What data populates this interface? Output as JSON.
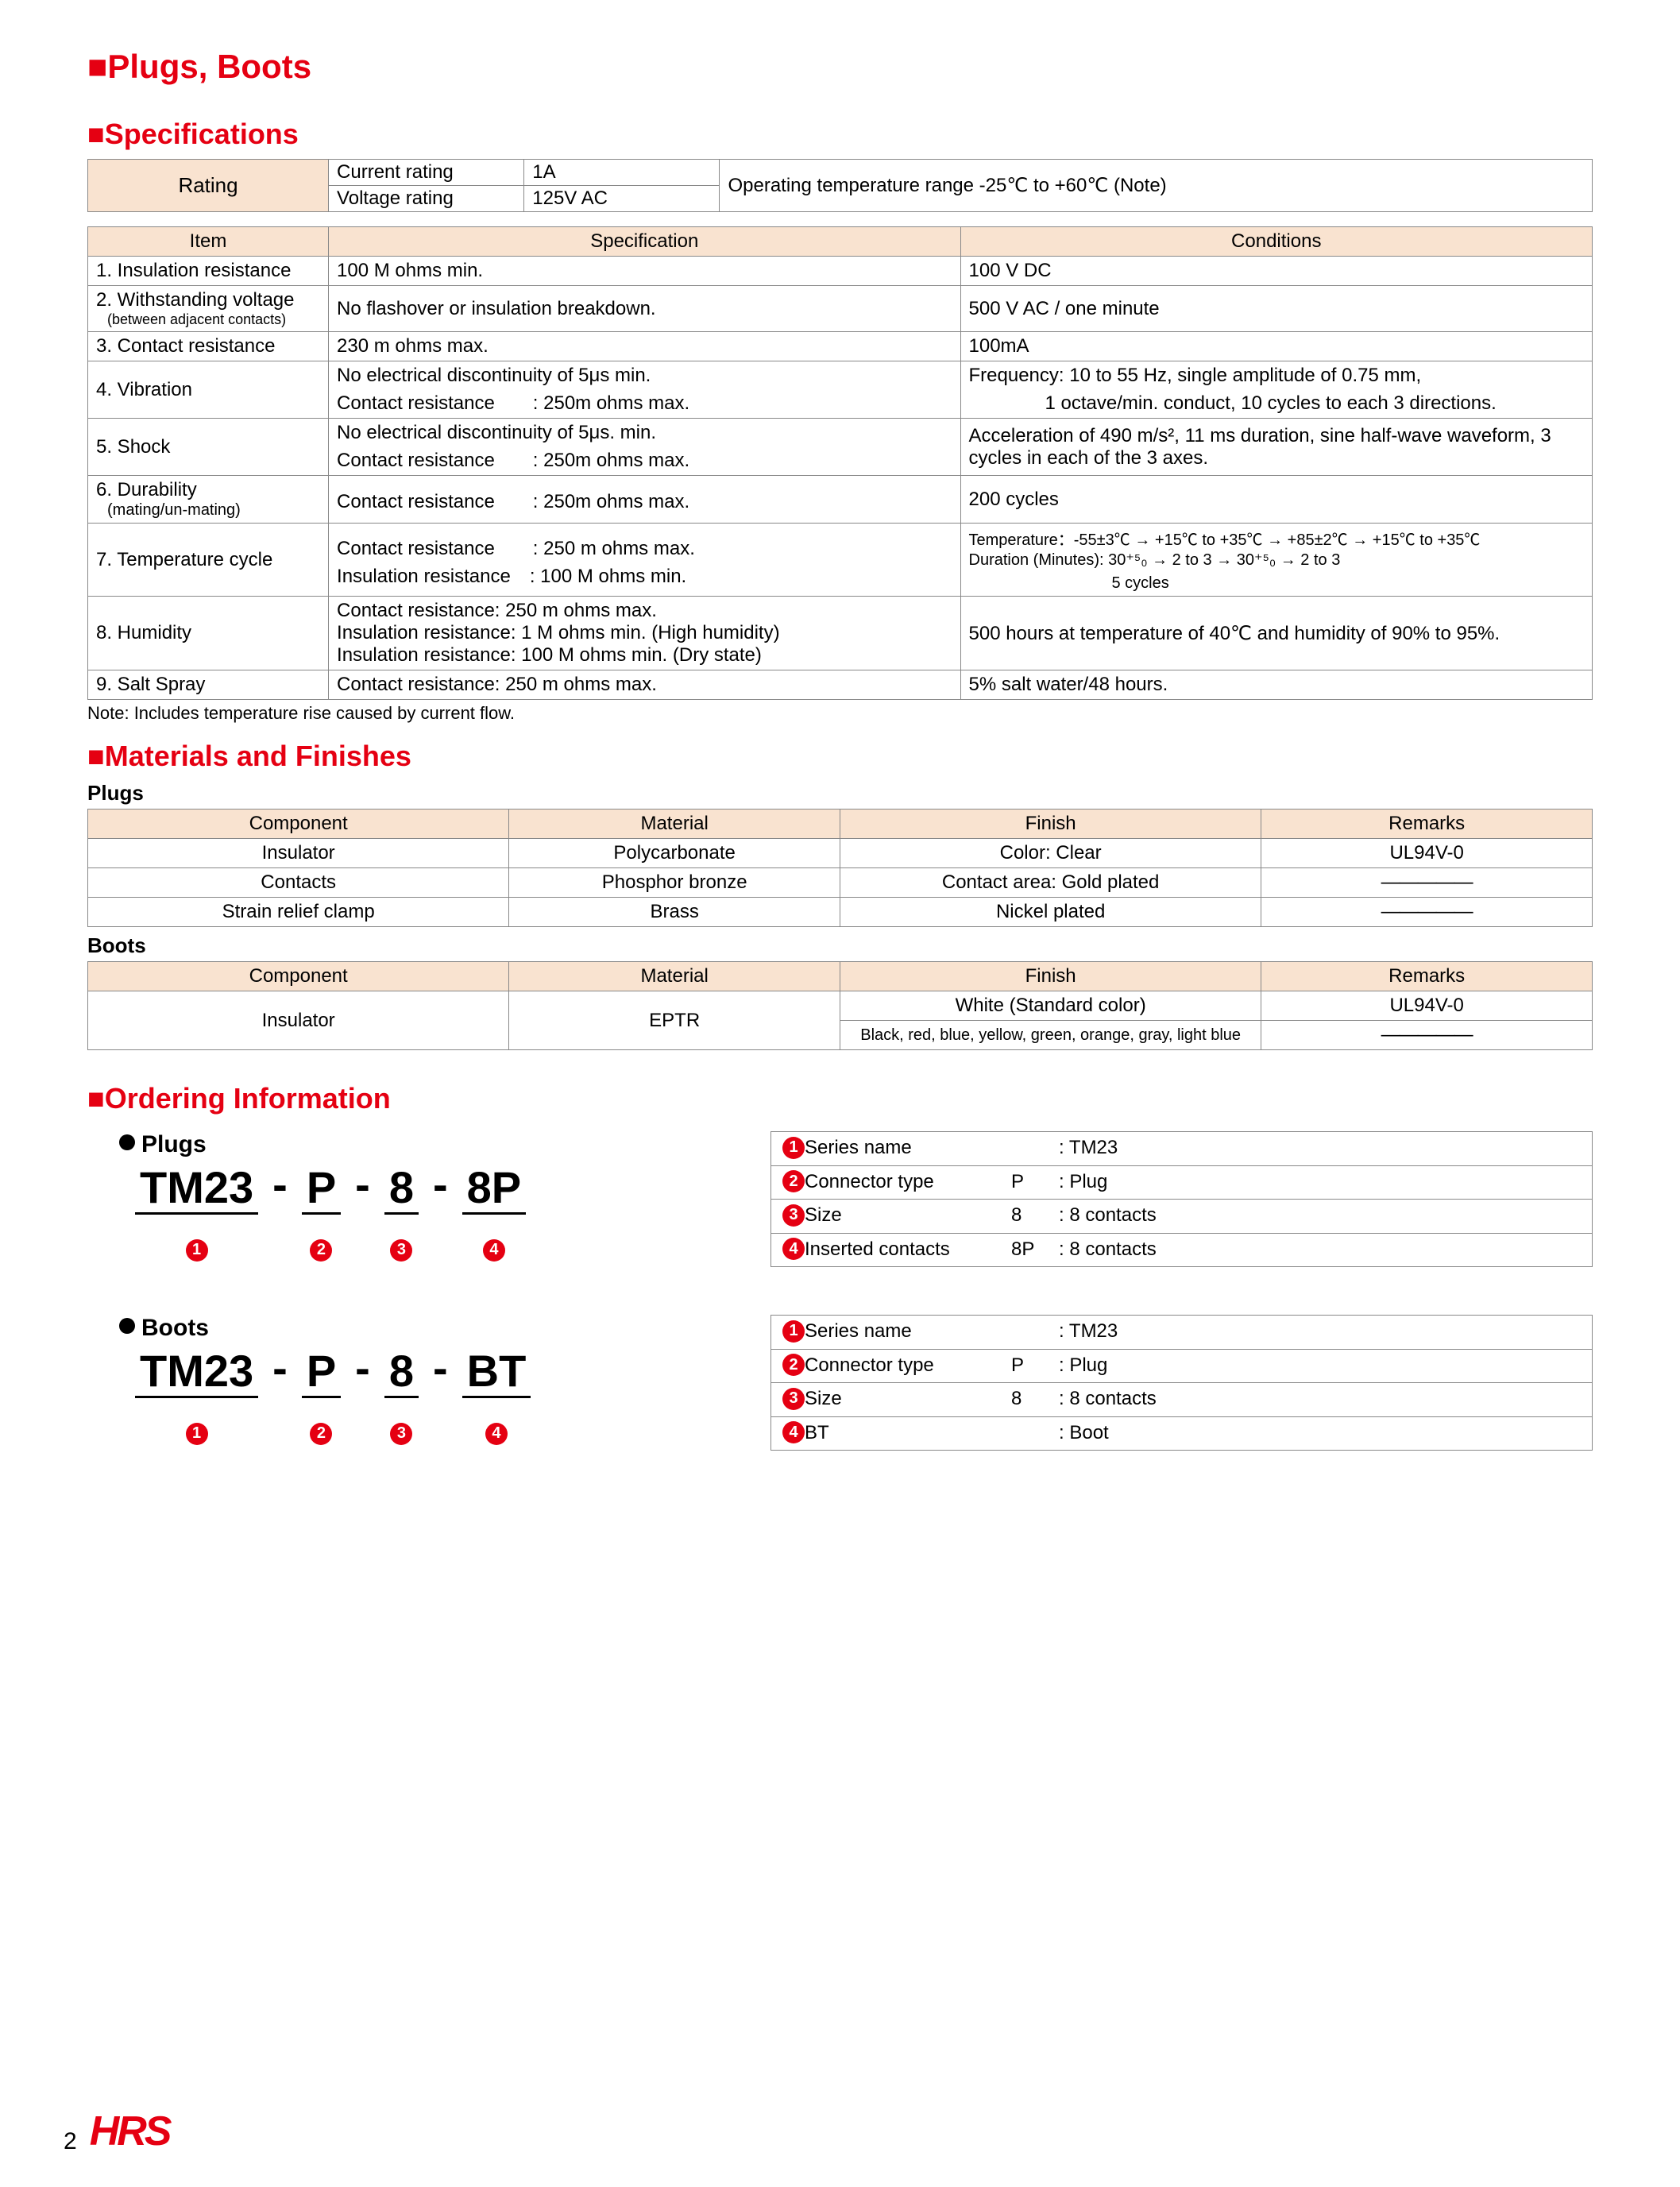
{
  "colors": {
    "accent": "#e50012",
    "header_bg": "#f9e3d0",
    "border": "#888888",
    "text": "#000000",
    "bg": "#ffffff"
  },
  "page_title": "Plugs, Boots",
  "sections": {
    "spec": "Specifications",
    "mat": "Materials and Finishes",
    "ord": "Ordering Information"
  },
  "rating": {
    "label": "Rating",
    "current_label": "Current rating",
    "current_value": "1A",
    "voltage_label": "Voltage rating",
    "voltage_value": "125V AC",
    "optemp": "Operating temperature range -25℃ to +60℃ (Note)"
  },
  "spec_headers": {
    "item": "Item",
    "spec": "Specification",
    "cond": "Conditions"
  },
  "specs": [
    {
      "item": "1. Insulation resistance",
      "spec": "100 M ohms min.",
      "cond": "100 V DC"
    },
    {
      "item": "2. Withstanding voltage",
      "item_sub": "(between adjacent contacts)",
      "spec": "No flashover or insulation breakdown.",
      "cond": "500 V AC / one minute"
    },
    {
      "item": "3. Contact resistance",
      "spec": "230 m ohms max.",
      "cond": "100mA"
    },
    {
      "item": "4. Vibration",
      "spec": "No electrical discontinuity of 5μs min.\nContact resistance　　: 250m ohms max.",
      "cond": "Frequency: 10 to 55 Hz, single amplitude of 0.75 mm,\n　　　　1 octave/min. conduct, 10 cycles to each 3 directions."
    },
    {
      "item": "5. Shock",
      "spec": "No electrical discontinuity of 5μs. min.\nContact resistance　　: 250m ohms max.",
      "cond": "Acceleration of 490 m/s², 11 ms duration, sine half-wave waveform, 3 cycles in each of the 3 axes."
    },
    {
      "item": "6. Durability",
      "item_sub": "(mating/un-mating)",
      "spec": "Contact resistance　　: 250m ohms max.",
      "cond": "200 cycles"
    },
    {
      "item": "7. Temperature cycle",
      "spec": "Contact resistance　　: 250 m ohms max.\nInsulation resistance　: 100 M ohms min.",
      "cond": "Temperature：-55±3℃ → +15℃ to +35℃ → +85±2℃ → +15℃ to +35℃\nDuration (Minutes): 30⁺⁵₀ → 2 to 3 → 30⁺⁵₀ → 2 to 3\n　　　　　　　　　5 cycles"
    },
    {
      "item": "8. Humidity",
      "spec": "Contact resistance: 250 m ohms max.\nInsulation resistance: 1 M ohms min. (High humidity)\nInsulation resistance: 100 M ohms min. (Dry state)",
      "cond": "500 hours at temperature of 40℃ and humidity of 90% to 95%."
    },
    {
      "item": "9. Salt Spray",
      "spec": "Contact resistance: 250 m ohms max.",
      "cond": "5% salt water/48 hours."
    }
  ],
  "spec_note": "Note: Includes temperature rise caused by current flow.",
  "mat_headers": {
    "comp": "Component",
    "mat": "Material",
    "fin": "Finish",
    "rem": "Remarks"
  },
  "plugs_label": "Plugs",
  "plugs_rows": [
    {
      "comp": "Insulator",
      "mat": "Polycarbonate",
      "fin": "Color: Clear",
      "rem": "UL94V-0"
    },
    {
      "comp": "Contacts",
      "mat": "Phosphor bronze",
      "fin": "Contact area: Gold plated",
      "rem": "—————"
    },
    {
      "comp": "Strain relief clamp",
      "mat": "Brass",
      "fin": "Nickel plated",
      "rem": "—————"
    }
  ],
  "boots_label": "Boots",
  "boots_rows": [
    {
      "comp": "Insulator",
      "mat": "EPTR",
      "fin1": "White (Standard color)",
      "rem1": "UL94V-0",
      "fin2": "Black, red, blue, yellow, green, orange, gray, light blue",
      "rem2": "—————"
    }
  ],
  "ordering": {
    "plugs_title": "Plugs",
    "boots_title": "Boots",
    "parts": [
      "TM23",
      "P",
      "8",
      "8P"
    ],
    "parts_boots": [
      "TM23",
      "P",
      "8",
      "BT"
    ],
    "legend_plugs": [
      {
        "n": "1",
        "label": "Series name",
        "code": "",
        "desc": ": TM23"
      },
      {
        "n": "2",
        "label": "Connector type",
        "code": "P",
        "desc": ": Plug"
      },
      {
        "n": "3",
        "label": "Size",
        "code": "8",
        "desc": ": 8 contacts"
      },
      {
        "n": "4",
        "label": "Inserted contacts",
        "code": "8P",
        "desc": ": 8 contacts"
      }
    ],
    "legend_boots": [
      {
        "n": "1",
        "label": "Series name",
        "code": "",
        "desc": ": TM23"
      },
      {
        "n": "2",
        "label": "Connector type",
        "code": "P",
        "desc": ": Plug"
      },
      {
        "n": "3",
        "label": "Size",
        "code": "8",
        "desc": ": 8 contacts"
      },
      {
        "n": "4",
        "label": "BT",
        "code": "",
        "desc": ": Boot"
      }
    ]
  },
  "footer": {
    "page": "2",
    "logo": "HRS"
  }
}
